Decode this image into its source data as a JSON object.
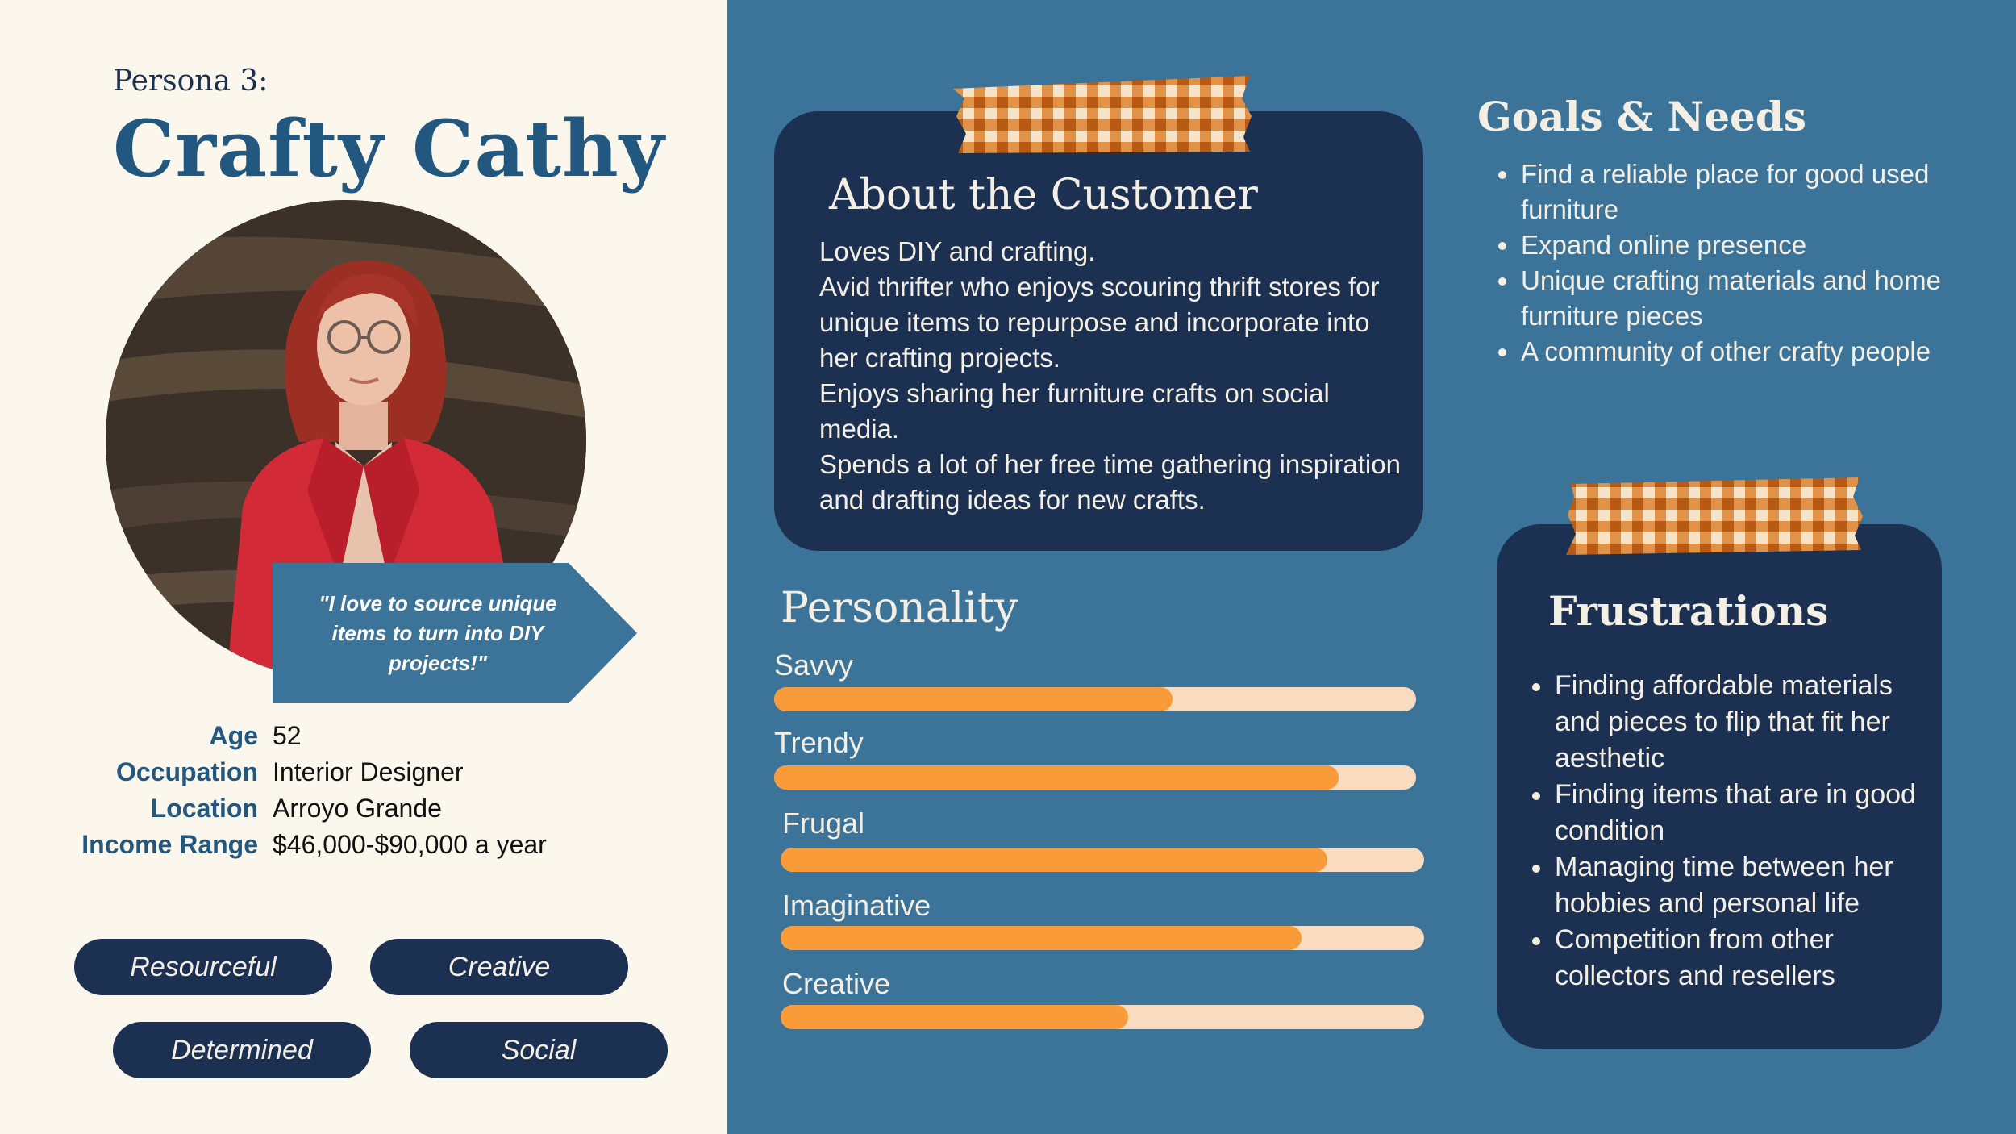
{
  "persona": {
    "number_label": "Persona 3:",
    "name": "Crafty Cathy",
    "quote": "\"I love to source unique items to turn into DIY projects!\""
  },
  "info": {
    "labels": [
      "Age",
      "Occupation",
      "Location",
      "Income Range"
    ],
    "values": [
      "52",
      "Interior Designer",
      "Arroyo Grande",
      "$46,000-$90,000 a year"
    ]
  },
  "traits": [
    "Resourceful",
    "Creative",
    "Determined",
    "Social"
  ],
  "about": {
    "title": "About the Customer",
    "lines": [
      "Loves DIY and crafting.",
      "Avid thrifter who enjoys scouring thrift stores for unique items to repurpose and incorporate into her crafting projects.",
      "Enjoys sharing her furniture crafts on social media.",
      "Spends a lot of her free time gathering inspiration and drafting ideas for new crafts."
    ]
  },
  "goals": {
    "title": "Goals & Needs",
    "items": [
      "Find a reliable place for good used furniture",
      "Expand online presence",
      "Unique crafting materials and home furniture pieces",
      "A community of other crafty people"
    ]
  },
  "personality": {
    "title": "Personality",
    "traits": [
      {
        "label": "Savvy",
        "level": 0.62
      },
      {
        "label": "Trendy",
        "level": 0.88
      },
      {
        "label": "Frugal",
        "level": 0.85
      },
      {
        "label": "Imaginative",
        "level": 0.81
      },
      {
        "label": "Creative",
        "level": 0.54
      }
    ]
  },
  "frustrations": {
    "title": "Frustrations",
    "items": [
      "Finding affordable materials and pieces to flip that fit her aesthetic",
      "Finding items that are in good condition",
      "Managing time between her hobbies and personal life",
      "Competition from other collectors and resellers"
    ]
  },
  "colors": {
    "left_background": "#fcf7ec",
    "right_background": "#3c7399",
    "card_navy": "#1c3152",
    "accent_orange": "#f89b38",
    "bar_track": "#f9dcc0",
    "name_blue": "#22587f"
  }
}
